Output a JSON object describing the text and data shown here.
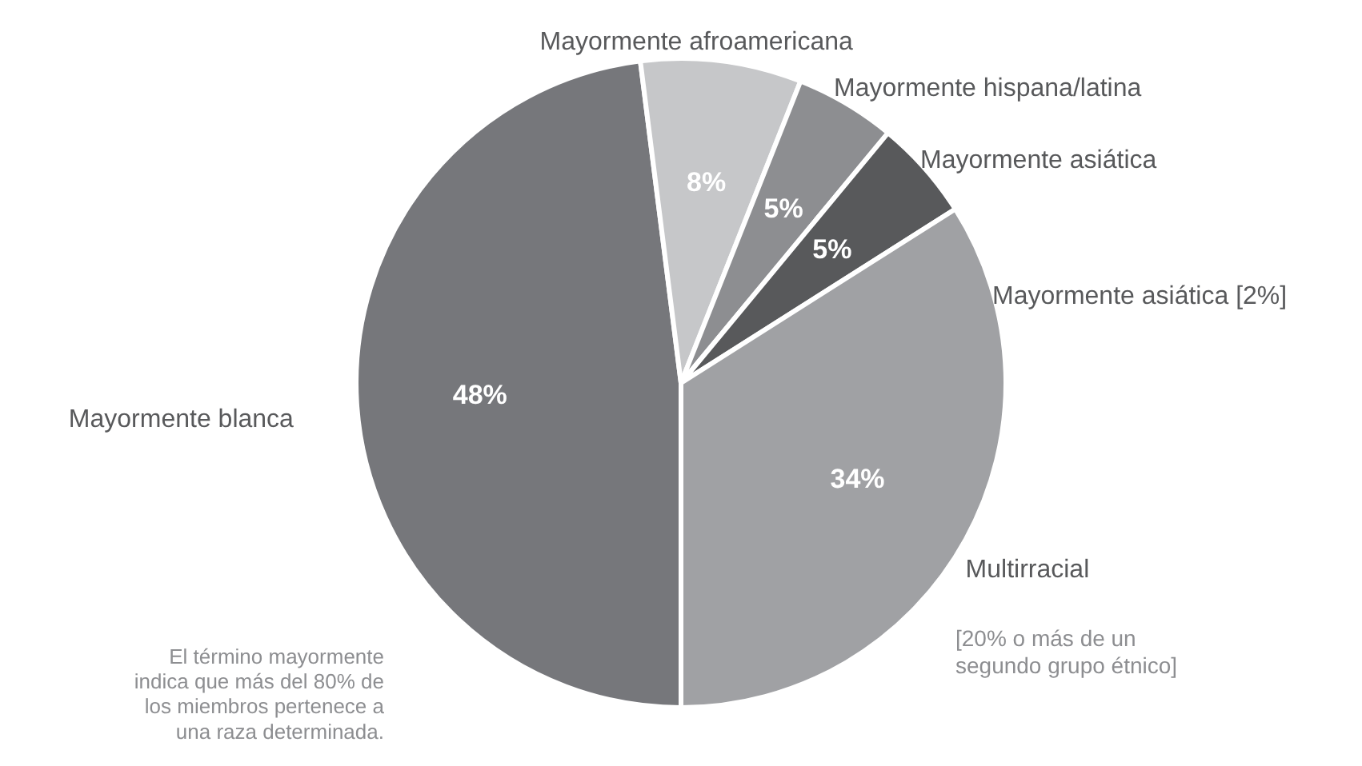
{
  "chart_data": {
    "type": "pie",
    "categories": [
      "Mayormente blanca",
      "Mayormente afroamericana",
      "Mayormente hispana/latina",
      "Mayormente asiática",
      "Multirracial"
    ],
    "values": [
      48,
      8,
      5,
      5,
      34
    ],
    "colors": [
      "#76777b",
      "#c6c7c9",
      "#8d8e91",
      "#58595b",
      "#a0a1a4"
    ],
    "value_labels": [
      "48%",
      "8%",
      "5%",
      "5%",
      "34%"
    ],
    "annotations": [
      "Mayormente asiática [2%]",
      "[20% o más de un segundo grupo étnico]",
      "El término mayormente indica que más del 80% de los miembros pertenece a una raza determinada."
    ]
  }
}
